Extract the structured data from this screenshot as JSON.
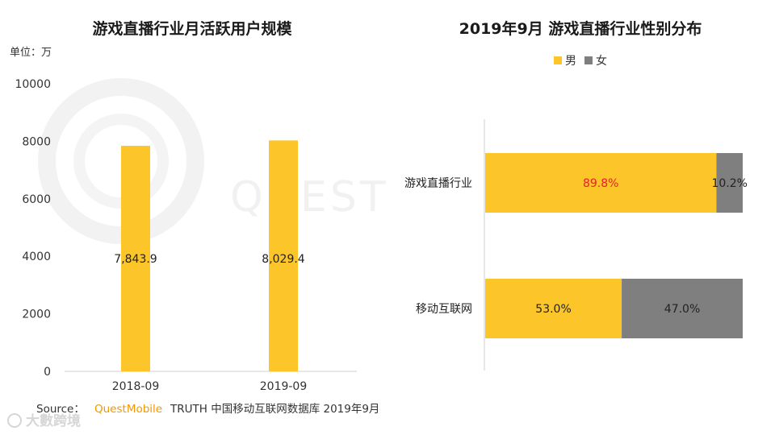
{
  "unit_label": "单位：万",
  "source": {
    "prefix": "Source：",
    "brand": "QuestMobile",
    "rest": "TRUTH 中国移动互联网数据库 2019年9月"
  },
  "watermark": "QUEST",
  "corner_logo": "大數跨境",
  "colors": {
    "bar": "#FCC52A",
    "female": "#7F7F7F",
    "highlight_label": "#E8202A"
  },
  "chart_data": [
    {
      "type": "bar",
      "title": "游戏直播行业月活跃用户规模",
      "categories": [
        "2018-09",
        "2019-09"
      ],
      "values": [
        7843.9,
        8029.4
      ],
      "value_labels": [
        "7,843.9",
        "8,029.4"
      ],
      "y_ticks": [
        "0",
        "2000",
        "4000",
        "6000",
        "8000",
        "10000"
      ],
      "ylim": [
        0,
        10000
      ],
      "grid": false
    },
    {
      "type": "bar",
      "orientation": "horizontal",
      "stacked": true,
      "title": "2019年9月 游戏直播行业性别分布",
      "categories": [
        "游戏直播行业",
        "移动互联网"
      ],
      "series": [
        {
          "name": "男",
          "values": [
            89.8,
            53.0
          ],
          "labels": [
            "89.8%",
            "53.0%"
          ]
        },
        {
          "name": "女",
          "values": [
            10.2,
            47.0
          ],
          "labels": [
            "10.2%",
            "47.0%"
          ]
        }
      ],
      "legend": "top",
      "xlim": [
        0,
        100
      ]
    }
  ]
}
